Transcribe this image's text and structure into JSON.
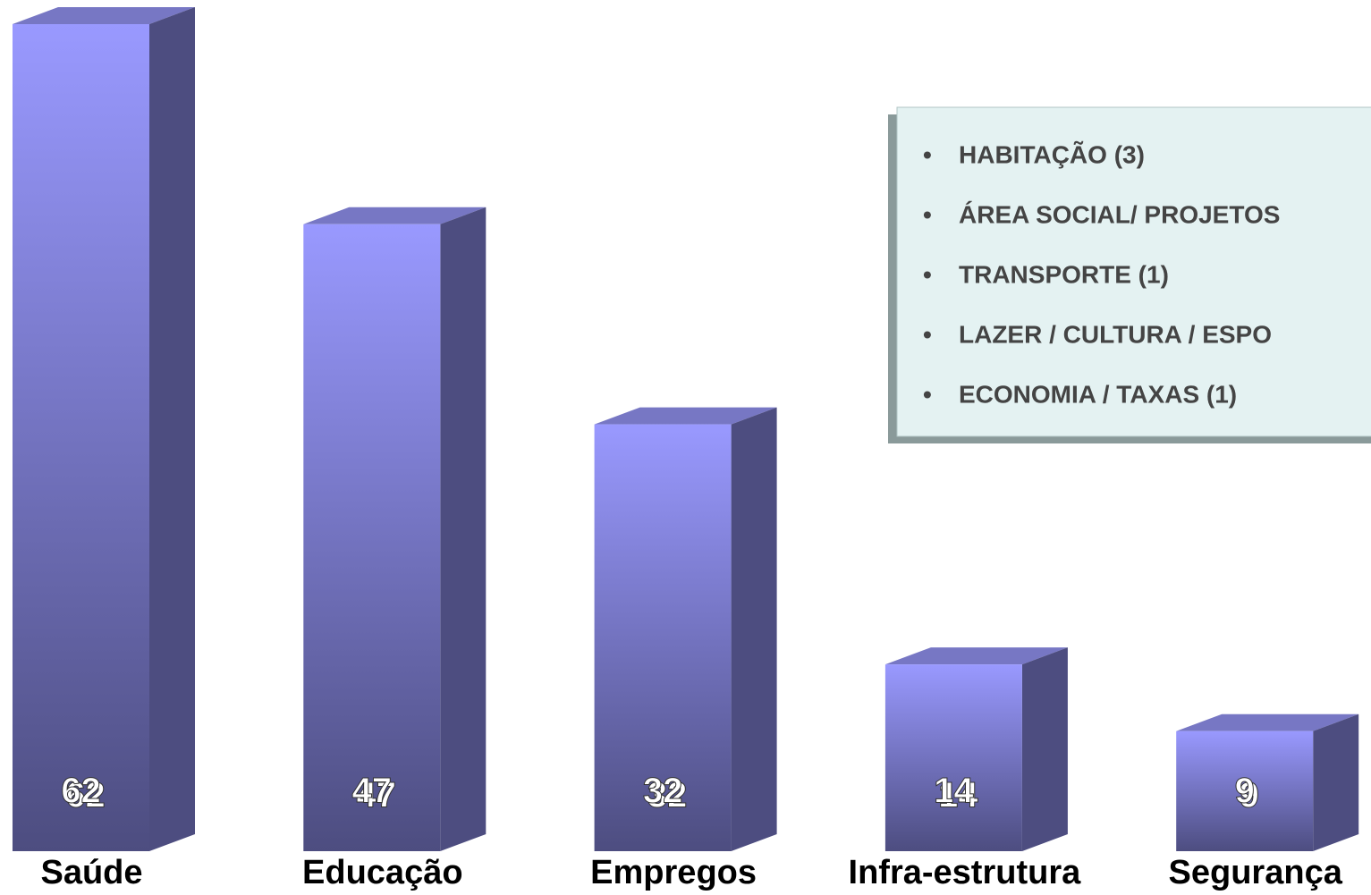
{
  "chart_data": {
    "type": "bar3d",
    "categories": [
      "Saúde",
      "Educação",
      "Empregos",
      "Infra-estrutura",
      "Segurança"
    ],
    "values": [
      62,
      47,
      32,
      14,
      9
    ],
    "color": "#9999ff",
    "notes": [
      "HABITAÇÃO (3)",
      "ÁREA SOCIAL/ PROJETOS",
      "TRANSPORTE (1)",
      "LAZER / CULTURA / ESPO",
      "ECONOMIA / TAXAS (1)"
    ]
  }
}
